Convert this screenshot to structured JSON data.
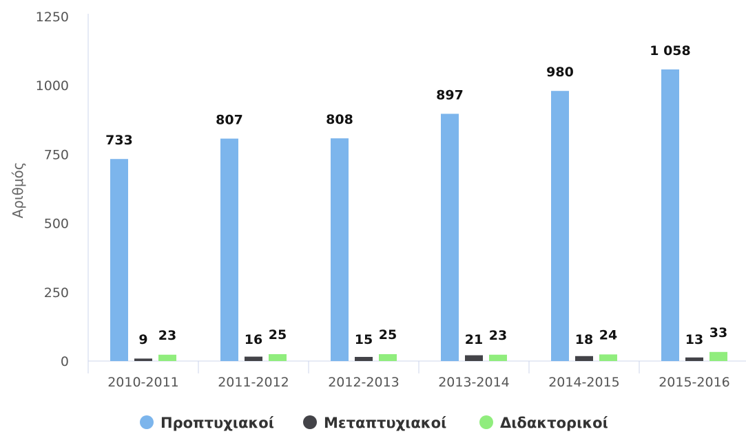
{
  "chart_data": {
    "type": "bar",
    "categories": [
      "2010-2011",
      "2011-2012",
      "2012-2013",
      "2013-2014",
      "2014-2015",
      "2015-2016"
    ],
    "series": [
      {
        "name": "Προπτυχιακοί",
        "values": [
          733,
          807,
          808,
          897,
          980,
          1058
        ],
        "labels": [
          "733",
          "807",
          "808",
          "897",
          "980",
          "1 058"
        ],
        "color": "#7cb5ec"
      },
      {
        "name": "Μεταπτυχιακοί",
        "values": [
          9,
          16,
          15,
          21,
          18,
          13
        ],
        "labels": [
          "9",
          "16",
          "15",
          "21",
          "18",
          "13"
        ],
        "color": "#434348"
      },
      {
        "name": "Διδακτορικοί",
        "values": [
          23,
          25,
          25,
          23,
          24,
          33
        ],
        "labels": [
          "23",
          "25",
          "25",
          "23",
          "24",
          "33"
        ],
        "color": "#90ed7d"
      }
    ],
    "title": "",
    "xlabel": "",
    "ylabel": "Αριθμός",
    "ylim": [
      0,
      1250
    ],
    "yticks": [
      "0",
      "250",
      "500",
      "750",
      "1000",
      "1250"
    ],
    "grid": false,
    "legend": "bottom-center"
  }
}
